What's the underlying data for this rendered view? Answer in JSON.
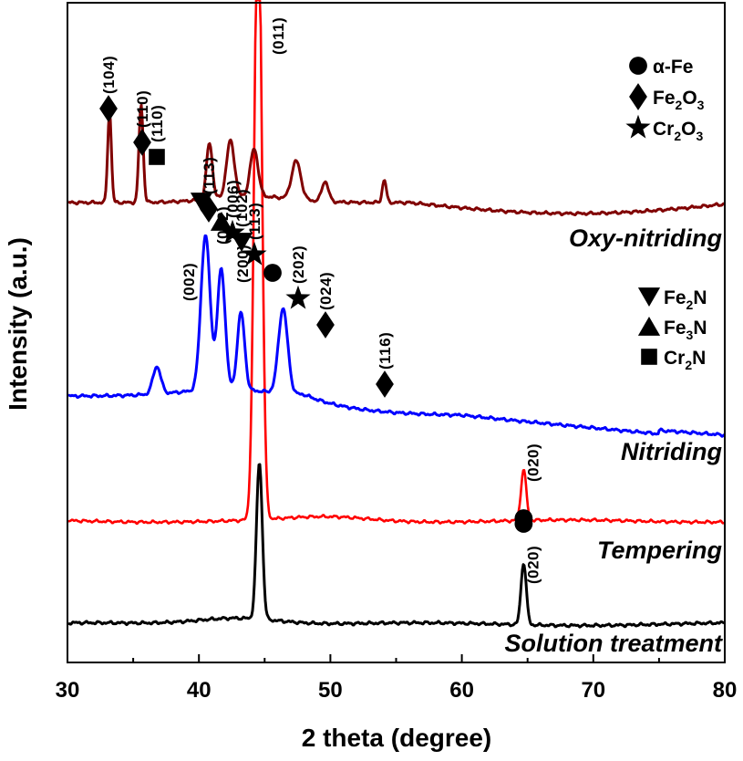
{
  "chart_data": {
    "type": "line",
    "xlabel": "2 theta (degree)",
    "ylabel": "Intensity (a.u.)",
    "xlim": [
      30,
      80
    ],
    "xticks": [
      "30",
      "40",
      "50",
      "60",
      "70",
      "80"
    ],
    "y_ticks_shown": false,
    "grid": false,
    "series": [
      {
        "name": "Solution treatment",
        "color": "#000000",
        "peaks": [
          {
            "x": 44.6,
            "label": "",
            "marker": ""
          },
          {
            "x": 64.7,
            "label": "(020)",
            "marker": "circle"
          }
        ]
      },
      {
        "name": "Tempering",
        "color": "#ff0000",
        "peaks": [
          {
            "x": 44.5,
            "label": "",
            "marker": ""
          },
          {
            "x": 64.7,
            "label": "(020)",
            "marker": "circle"
          }
        ]
      },
      {
        "name": "Nitriding",
        "color": "#0000ff",
        "peaks": [
          {
            "x": 36.8,
            "label": "(110)",
            "marker": "square"
          },
          {
            "x": 40.5,
            "label": "(002)",
            "marker": ""
          },
          {
            "x": 41.7,
            "label": "(002)",
            "marker": "triangle-down"
          },
          {
            "x": 43.2,
            "label": "(200)",
            "marker": "triangle-up"
          },
          {
            "x": 46.4,
            "label": "(102)",
            "marker": "triangle-down"
          }
        ]
      },
      {
        "name": "Oxy-nitriding",
        "color": "#800000",
        "peaks": [
          {
            "x": 33.2,
            "label": "(104)",
            "marker": "diamond"
          },
          {
            "x": 35.6,
            "label": "(110)",
            "marker": "diamond"
          },
          {
            "x": 40.8,
            "label": "(113)",
            "marker": "diamond"
          },
          {
            "x": 42.4,
            "label": "(006)",
            "marker": "star"
          },
          {
            "x": 44.2,
            "label": "(113)",
            "marker": "star"
          },
          {
            "x": 45.4,
            "label": "(011)",
            "marker": "circle"
          },
          {
            "x": 47.4,
            "label": "(202)",
            "marker": "star"
          },
          {
            "x": 49.6,
            "label": "(024)",
            "marker": "diamond"
          },
          {
            "x": 54.1,
            "label": "(116)",
            "marker": "diamond"
          }
        ]
      }
    ],
    "legends": [
      {
        "position": "top-right",
        "entries": [
          {
            "marker": "circle",
            "text": "α-Fe"
          },
          {
            "marker": "diamond",
            "text": "Fe",
            "sub": "2",
            "text2": "O",
            "sub2": "3"
          },
          {
            "marker": "star",
            "text": "Cr",
            "sub": "2",
            "text2": "O",
            "sub2": "3"
          }
        ]
      },
      {
        "position": "right-middle",
        "entries": [
          {
            "marker": "triangle-down",
            "text": "Fe",
            "sub": "2",
            "text2": "N",
            "sub2": ""
          },
          {
            "marker": "triangle-up",
            "text": "Fe",
            "sub": "3",
            "text2": "N",
            "sub2": ""
          },
          {
            "marker": "square",
            "text": "Cr",
            "sub": "2",
            "text2": "N",
            "sub2": ""
          }
        ]
      }
    ]
  }
}
